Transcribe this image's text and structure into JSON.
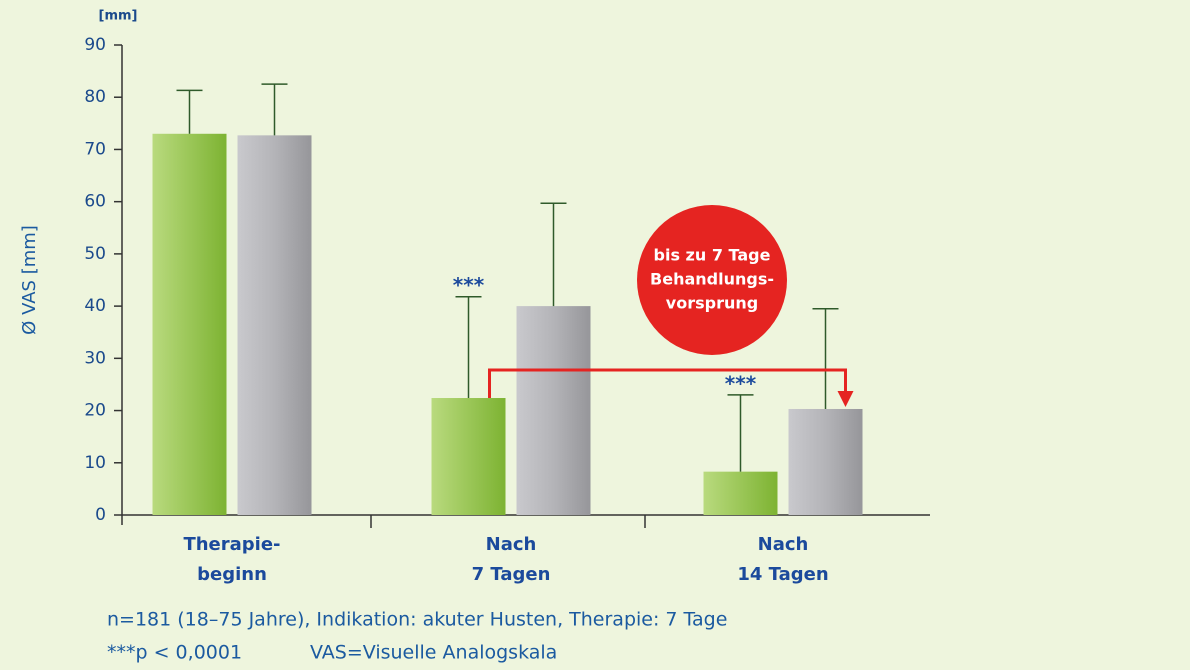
{
  "chart_data": {
    "type": "bar",
    "y_label": "Ø VAS [mm]",
    "y_unit": "[mm]",
    "categories": [
      [
        "Therapie-",
        "beginn"
      ],
      [
        "Nach",
        "7 Tagen"
      ],
      [
        "Nach",
        "14 Tagen"
      ]
    ],
    "series": [
      {
        "color": "#86bb3c",
        "values": [
          73,
          22.4,
          8.3
        ],
        "errors": [
          8.3,
          19.4,
          14.7
        ]
      },
      {
        "color": "#a3a3a7",
        "values": [
          72.7,
          40,
          20.3
        ],
        "errors": [
          9.8,
          19.7,
          19.2
        ]
      }
    ],
    "ylim": [
      0,
      90
    ],
    "yticks": [
      0,
      10,
      20,
      30,
      40,
      50,
      60,
      70,
      80,
      90
    ],
    "annotations": [
      "***",
      "***"
    ],
    "callout": [
      "bis zu 7 Tage",
      "Behandlungs-",
      "vorsprung"
    ],
    "footnotes": [
      "n=181 (18–75 Jahre), Indikation: akuter Husten, Therapie: 7 Tage",
      "***p < 0,0001",
      "VAS=Visuelle Analogskala"
    ]
  }
}
